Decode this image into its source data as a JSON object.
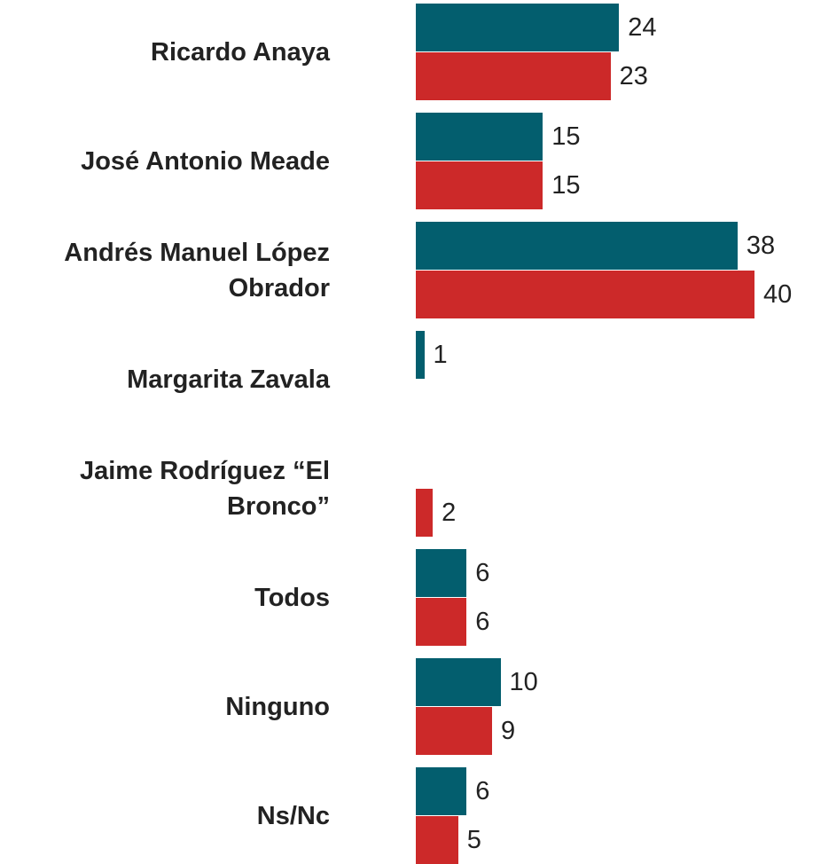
{
  "chart_data": {
    "type": "bar",
    "orientation": "horizontal",
    "categories": [
      "Ricardo Anaya",
      "José Antonio Meade",
      "Andrés Manuel López Obrador",
      "Margarita Zavala",
      "Jaime Rodríguez “El Bronco”",
      "Todos",
      "Ninguno",
      "Ns/Nc"
    ],
    "series": [
      {
        "color": "#035e6e",
        "values": [
          24,
          15,
          38,
          1,
          null,
          6,
          10,
          6
        ]
      },
      {
        "color": "#cc2929",
        "values": [
          23,
          15,
          40,
          null,
          2,
          6,
          9,
          5
        ]
      }
    ]
  }
}
